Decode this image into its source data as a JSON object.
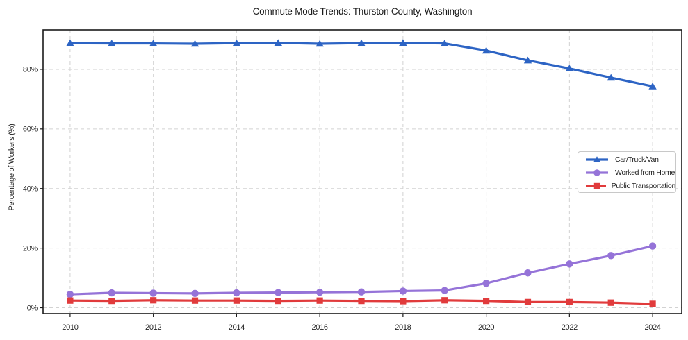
{
  "title": "Commute Mode Trends: Thurston County, Washington",
  "ylabel": "Percentage of Workers (%)",
  "colors": {
    "background": "#ffffff",
    "spine": "#1a1a1a",
    "grid": "#d2d2d2",
    "tick_text": "#242424",
    "car": "#2d64c4",
    "worked_from_home": "#9573d8",
    "public_transportation": "#e13b3c"
  },
  "chart_data": {
    "type": "line",
    "title": "Commute Mode Trends: Thurston County, Washington",
    "xlabel": "",
    "ylabel": "Percentage of Workers (%)",
    "grid": true,
    "legend_position": "center-right",
    "xlim": [
      2009.35,
      2024.7
    ],
    "ylim": [
      -1.98,
      93.26
    ],
    "xticks": [
      2010,
      2012,
      2014,
      2016,
      2018,
      2020,
      2022,
      2024
    ],
    "xtick_labels": [
      "2010",
      "2012",
      "2014",
      "2016",
      "2018",
      "2020",
      "2022",
      "2024"
    ],
    "yticks": [
      0,
      20,
      40,
      60,
      80
    ],
    "ytick_labels": [
      "0%",
      "20%",
      "40%",
      "60%",
      "80%"
    ],
    "x": [
      2010,
      2011,
      2012,
      2013,
      2014,
      2015,
      2016,
      2017,
      2018,
      2019,
      2020,
      2021,
      2022,
      2023,
      2024
    ],
    "series": [
      {
        "name": "Car/Truck/Van",
        "color": "#2d64c4",
        "marker": "triangle",
        "values": [
          88.8,
          88.7,
          88.7,
          88.6,
          88.8,
          88.9,
          88.6,
          88.8,
          88.9,
          88.7,
          86.3,
          83.0,
          80.3,
          77.2,
          74.3
        ]
      },
      {
        "name": "Worked from Home",
        "color": "#9573d8",
        "marker": "circle",
        "values": [
          4.5,
          5.0,
          4.9,
          4.8,
          5.0,
          5.1,
          5.2,
          5.3,
          5.6,
          5.8,
          8.2,
          11.7,
          14.7,
          17.5,
          20.7
        ]
      },
      {
        "name": "Public Transportation",
        "color": "#e13b3c",
        "marker": "square",
        "values": [
          2.4,
          2.3,
          2.5,
          2.4,
          2.4,
          2.3,
          2.4,
          2.3,
          2.2,
          2.5,
          2.3,
          1.9,
          1.9,
          1.7,
          1.3
        ]
      }
    ]
  }
}
